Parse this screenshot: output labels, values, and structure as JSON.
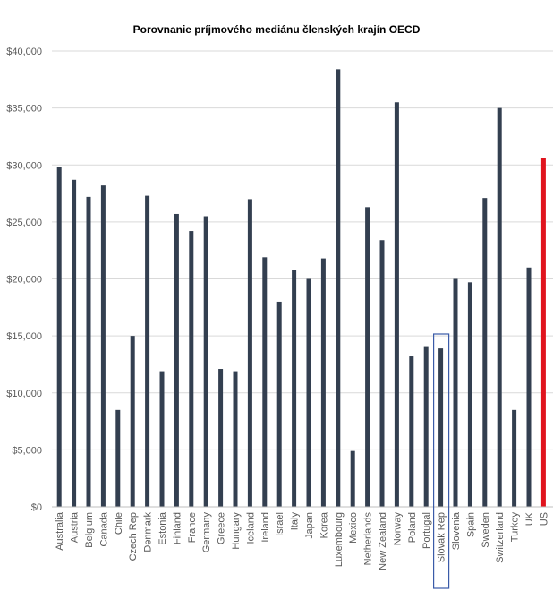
{
  "chart_data": {
    "type": "bar",
    "title": "Porovnanie príjmového mediánu členských krajín OECD",
    "xlabel": "",
    "ylabel": "",
    "ylim": [
      0,
      40000
    ],
    "y_ticks": [
      "$0",
      "$5,000",
      "$10,000",
      "$15,000",
      "$20,000",
      "$25,000",
      "$30,000",
      "$35,000",
      "$40,000"
    ],
    "y_tick_values": [
      0,
      5000,
      10000,
      15000,
      20000,
      25000,
      30000,
      35000,
      40000
    ],
    "grid": "horizontal",
    "categories": [
      "Australia",
      "Austria",
      "Belgium",
      "Canada",
      "Chile",
      "Czech Rep",
      "Denmark",
      "Estonia",
      "Finland",
      "France",
      "Germany",
      "Greece",
      "Hungary",
      "Iceland",
      "Ireland",
      "Israel",
      "Italy",
      "Japan",
      "Korea",
      "Luxembourg",
      "Mexico",
      "Netherlands",
      "New Zealand",
      "Norway",
      "Poland",
      "Portugal",
      "Slovak Rep",
      "Slovenia",
      "Spain",
      "Sweden",
      "Switzerland",
      "Turkey",
      "UK",
      "US"
    ],
    "values": [
      29800,
      28700,
      27200,
      28200,
      8500,
      15000,
      27300,
      11900,
      25700,
      24200,
      25500,
      12100,
      11900,
      27000,
      21900,
      18000,
      20800,
      20000,
      21800,
      38400,
      4900,
      26300,
      23400,
      35500,
      13200,
      14100,
      13900,
      20000,
      19700,
      27100,
      35000,
      8500,
      21000,
      30600
    ],
    "bar_color": "#333f50",
    "highlight_color": "#e0141e",
    "highlight_category": "US",
    "boxed_category": "Slovak Rep",
    "box_color": "#3a5ba8",
    "grid_color": "#d9d9d9",
    "axis_color": "#bfbfbf"
  }
}
